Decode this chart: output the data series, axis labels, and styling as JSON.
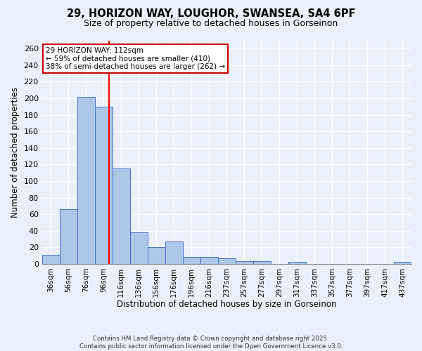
{
  "title_line1": "29, HORIZON WAY, LOUGHOR, SWANSEA, SA4 6PF",
  "title_line2": "Size of property relative to detached houses in Gorseinon",
  "xlabel": "Distribution of detached houses by size in Gorseinon",
  "ylabel": "Number of detached properties",
  "bin_labels": [
    "36sqm",
    "56sqm",
    "76sqm",
    "96sqm",
    "116sqm",
    "136sqm",
    "156sqm",
    "176sqm",
    "196sqm",
    "216sqm",
    "237sqm",
    "257sqm",
    "277sqm",
    "297sqm",
    "317sqm",
    "337sqm",
    "357sqm",
    "377sqm",
    "397sqm",
    "417sqm",
    "437sqm"
  ],
  "bar_values": [
    11,
    66,
    202,
    190,
    115,
    38,
    20,
    27,
    8,
    8,
    7,
    3,
    3,
    0,
    2,
    0,
    0,
    0,
    0,
    0,
    2
  ],
  "bar_color": "#aec6e8",
  "bar_edge_color": "#4472c4",
  "bg_color": "#eaf0fb",
  "grid_color": "#ffffff",
  "annotation_text": "29 HORIZON WAY: 112sqm\n← 59% of detached houses are smaller (410)\n38% of semi-detached houses are larger (262) →",
  "annotation_box_color": "#ffffff",
  "annotation_box_edge": "#cc0000",
  "footer_line1": "Contains HM Land Registry data © Crown copyright and database right 2025.",
  "footer_line2": "Contains public sector information licensed under the Open Government Licence v3.0.",
  "ylim": [
    0,
    270
  ],
  "yticks": [
    0,
    20,
    40,
    60,
    80,
    100,
    120,
    140,
    160,
    180,
    200,
    220,
    240,
    260
  ],
  "red_line_x": 3.3
}
